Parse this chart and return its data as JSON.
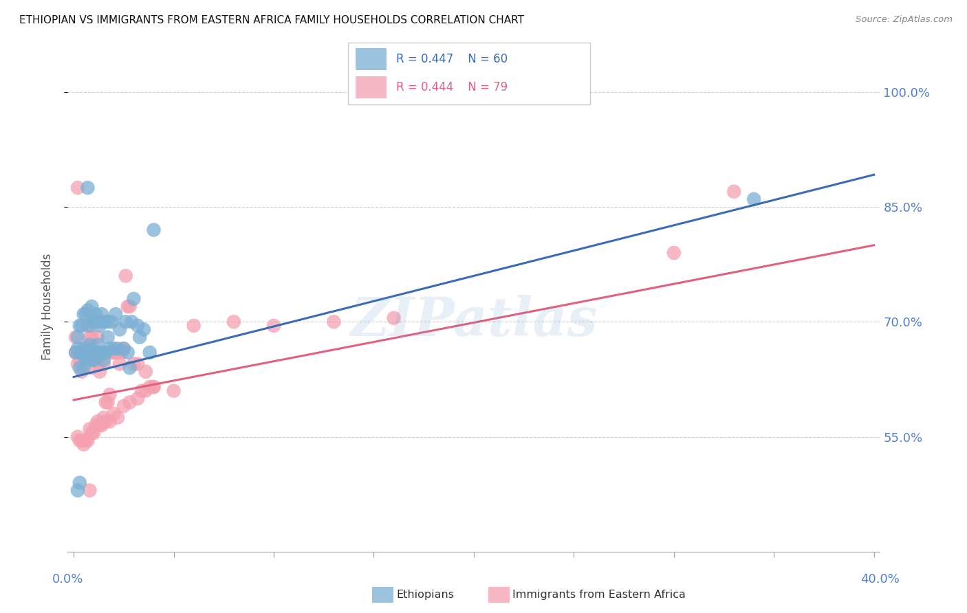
{
  "title": "ETHIOPIAN VS IMMIGRANTS FROM EASTERN AFRICA FAMILY HOUSEHOLDS CORRELATION CHART",
  "source": "Source: ZipAtlas.com",
  "ylabel": "Family Households",
  "y_ticks": [
    0.55,
    0.7,
    0.85,
    1.0
  ],
  "y_tick_labels": [
    "55.0%",
    "70.0%",
    "85.0%",
    "100.0%"
  ],
  "watermark": "ZIPatlas",
  "blue_color": "#7BAFD4",
  "pink_color": "#F4A0B0",
  "blue_line_color": "#3B6BB5",
  "pink_line_color": "#E06080",
  "axis_color": "#5580C8",
  "grid_color": "#CCCCCC",
  "blue_scatter_x": [
    0.001,
    0.002,
    0.003,
    0.003,
    0.004,
    0.005,
    0.005,
    0.006,
    0.006,
    0.007,
    0.007,
    0.008,
    0.008,
    0.009,
    0.009,
    0.01,
    0.01,
    0.011,
    0.012,
    0.012,
    0.013,
    0.014,
    0.015,
    0.016,
    0.017,
    0.018,
    0.02,
    0.022,
    0.025,
    0.027,
    0.03,
    0.033,
    0.038,
    0.002,
    0.003,
    0.004,
    0.005,
    0.006,
    0.007,
    0.008,
    0.009,
    0.01,
    0.011,
    0.012,
    0.013,
    0.014,
    0.015,
    0.017,
    0.019,
    0.021,
    0.023,
    0.026,
    0.029,
    0.032,
    0.035,
    0.04,
    0.002,
    0.003,
    0.028,
    0.34
  ],
  "blue_scatter_y": [
    0.66,
    0.665,
    0.64,
    0.66,
    0.66,
    0.64,
    0.665,
    0.65,
    0.665,
    0.66,
    0.875,
    0.655,
    0.67,
    0.65,
    0.665,
    0.65,
    0.7,
    0.66,
    0.655,
    0.67,
    0.66,
    0.66,
    0.65,
    0.66,
    0.68,
    0.665,
    0.665,
    0.665,
    0.665,
    0.66,
    0.73,
    0.68,
    0.66,
    0.68,
    0.695,
    0.695,
    0.71,
    0.71,
    0.715,
    0.695,
    0.72,
    0.7,
    0.71,
    0.7,
    0.695,
    0.71,
    0.7,
    0.7,
    0.7,
    0.71,
    0.69,
    0.7,
    0.7,
    0.695,
    0.69,
    0.82,
    0.48,
    0.49,
    0.64,
    0.86
  ],
  "pink_scatter_x": [
    0.001,
    0.001,
    0.002,
    0.002,
    0.003,
    0.003,
    0.004,
    0.004,
    0.005,
    0.005,
    0.006,
    0.006,
    0.007,
    0.007,
    0.008,
    0.008,
    0.009,
    0.009,
    0.01,
    0.01,
    0.011,
    0.012,
    0.012,
    0.013,
    0.014,
    0.015,
    0.016,
    0.017,
    0.018,
    0.019,
    0.02,
    0.021,
    0.022,
    0.023,
    0.024,
    0.025,
    0.026,
    0.027,
    0.028,
    0.03,
    0.032,
    0.034,
    0.036,
    0.038,
    0.04,
    0.002,
    0.003,
    0.004,
    0.005,
    0.006,
    0.007,
    0.008,
    0.009,
    0.01,
    0.011,
    0.012,
    0.013,
    0.014,
    0.015,
    0.016,
    0.018,
    0.02,
    0.022,
    0.025,
    0.028,
    0.032,
    0.036,
    0.04,
    0.05,
    0.06,
    0.08,
    0.1,
    0.13,
    0.16,
    0.3,
    0.33,
    0.002,
    0.008
  ],
  "pink_scatter_y": [
    0.66,
    0.68,
    0.645,
    0.66,
    0.65,
    0.66,
    0.66,
    0.635,
    0.655,
    0.66,
    0.655,
    0.66,
    0.66,
    0.695,
    0.655,
    0.68,
    0.64,
    0.68,
    0.65,
    0.705,
    0.66,
    0.65,
    0.68,
    0.635,
    0.66,
    0.645,
    0.595,
    0.595,
    0.605,
    0.66,
    0.66,
    0.66,
    0.66,
    0.645,
    0.66,
    0.665,
    0.76,
    0.72,
    0.72,
    0.645,
    0.645,
    0.61,
    0.635,
    0.615,
    0.615,
    0.55,
    0.545,
    0.545,
    0.54,
    0.545,
    0.545,
    0.56,
    0.555,
    0.555,
    0.565,
    0.57,
    0.565,
    0.565,
    0.575,
    0.57,
    0.57,
    0.58,
    0.575,
    0.59,
    0.595,
    0.6,
    0.61,
    0.615,
    0.61,
    0.695,
    0.7,
    0.695,
    0.7,
    0.705,
    0.79,
    0.87,
    0.875,
    0.48
  ],
  "blue_trend_x": [
    0.0,
    0.4
  ],
  "blue_trend_y": [
    0.628,
    0.892
  ],
  "pink_trend_x": [
    0.0,
    0.4
  ],
  "pink_trend_y": [
    0.598,
    0.8
  ],
  "xmin": -0.003,
  "xmax": 0.403,
  "ymin": 0.4,
  "ymax": 1.04
}
